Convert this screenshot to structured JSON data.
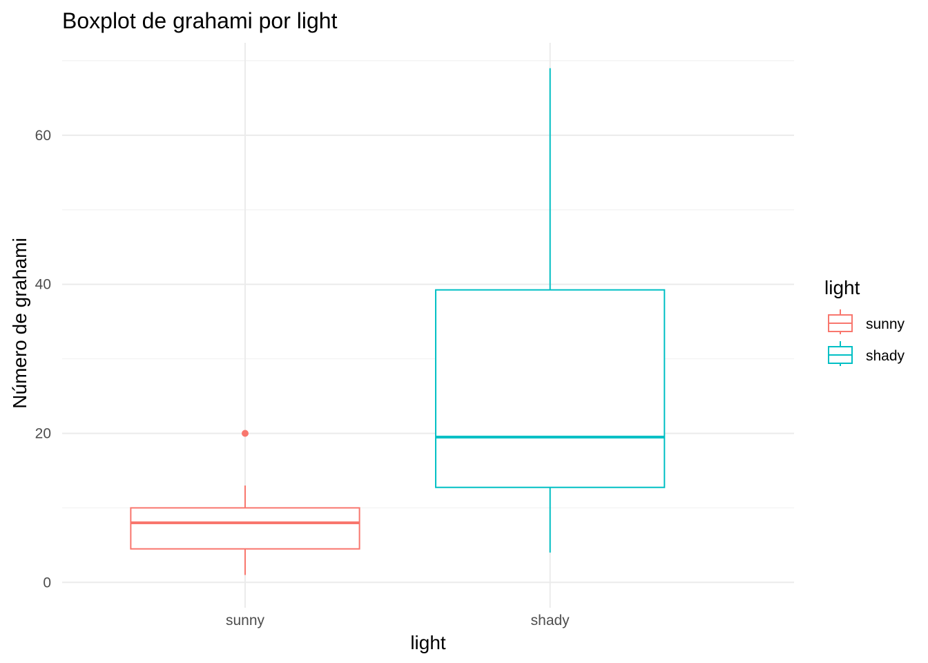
{
  "chart_data": {
    "type": "boxplot",
    "title": "Boxplot de grahami por light",
    "xlabel": "light",
    "ylabel": "Número de grahami",
    "ylim": [
      -3.4,
      72.4
    ],
    "y_ticks": [
      0,
      20,
      40,
      60
    ],
    "categories": [
      "sunny",
      "shady"
    ],
    "grid": true,
    "legend": {
      "title": "light",
      "position": "right",
      "entries": [
        {
          "label": "sunny",
          "color": "#F8766D"
        },
        {
          "label": "shady",
          "color": "#00BFC4"
        }
      ]
    },
    "series": [
      {
        "name": "sunny",
        "color": "#F8766D",
        "min": 1,
        "q1": 4.5,
        "median": 8,
        "q3": 10,
        "max": 13,
        "outliers": [
          20
        ]
      },
      {
        "name": "shady",
        "color": "#00BFC4",
        "min": 4,
        "q1": 12.75,
        "median": 19.5,
        "q3": 39.25,
        "max": 69,
        "outliers": []
      }
    ]
  }
}
